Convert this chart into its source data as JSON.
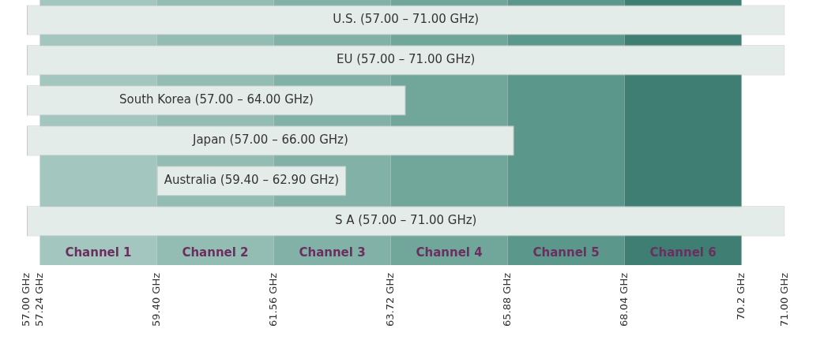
{
  "chart_data": {
    "type": "bar",
    "orientation": "horizontal",
    "categories": [
      "U.S. (57.00 – 71.00 GHz)",
      "EU (57.00 – 71.00 GHz)",
      "South Korea (57.00 – 64.00 GHz)",
      "Japan (57.00 – 66.00 GHz)",
      "Australia (59.40 – 62.90 GHz)",
      "S A (57.00 – 71.00 GHz)"
    ],
    "base": [
      57,
      57,
      57,
      57,
      59.4,
      57
    ],
    "values": [
      14,
      14,
      7,
      9,
      3.5,
      14
    ],
    "color": "#e4ecea",
    "xlim": [
      57,
      71
    ],
    "xticks": [
      {
        "value": 57,
        "label": "57.00 GHz"
      },
      {
        "value": 57.24,
        "label": "57.24 GHz"
      },
      {
        "value": 59.4,
        "label": "59.40 GHz"
      },
      {
        "value": 61.56,
        "label": "61.56 GHz"
      },
      {
        "value": 63.72,
        "label": "63.72 GHz"
      },
      {
        "value": 65.88,
        "label": "65.88 GHz"
      },
      {
        "value": 68.04,
        "label": "68.04 GHz"
      },
      {
        "value": 70.2,
        "label": "70.2 GHz"
      },
      {
        "value": 71,
        "label": "71.00 GHz"
      }
    ],
    "bands": [
      {
        "axis": "x",
        "from": 57.24,
        "to": 59.4,
        "label": "Channel 1",
        "color": "#a3c6be"
      },
      {
        "axis": "x",
        "from": 59.4,
        "to": 61.56,
        "label": "Channel 2",
        "color": "#93bcb3"
      },
      {
        "axis": "x",
        "from": 61.56,
        "to": 63.72,
        "label": "Channel 3",
        "color": "#82b1a7"
      },
      {
        "axis": "x",
        "from": 63.72,
        "to": 65.88,
        "label": "Channel 4",
        "color": "#71a69b"
      },
      {
        "axis": "x",
        "from": 65.88,
        "to": 68.04,
        "label": "Channel 5",
        "color": "#5c978b"
      },
      {
        "axis": "x",
        "from": 68.04,
        "to": 70.2,
        "label": "Channel 6",
        "color": "#3f7e72"
      }
    ],
    "grid": false,
    "legend": false
  }
}
